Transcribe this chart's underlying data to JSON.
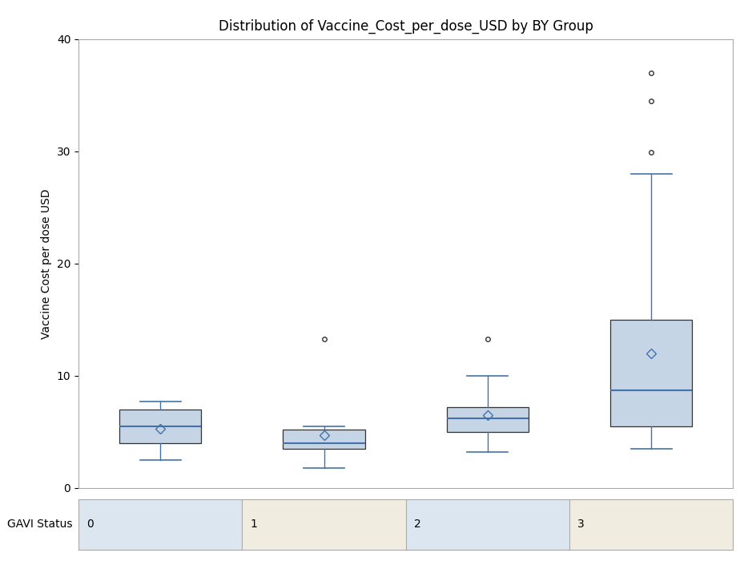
{
  "title": "Distribution of Vaccine_Cost_per_dose_USD by BY Group",
  "ylabel": "Vaccine Cost per dose USD",
  "xlabel_label": "GAVI Status",
  "groups": [
    "0",
    "1",
    "2",
    "3"
  ],
  "ylim": [
    0,
    40
  ],
  "yticks": [
    0,
    10,
    20,
    30,
    40
  ],
  "box_data": {
    "0": {
      "whislo": 2.5,
      "q1": 4.0,
      "med": 5.5,
      "q3": 7.0,
      "whishi": 7.7,
      "mean": 5.3,
      "fliers": []
    },
    "1": {
      "whislo": 1.8,
      "q1": 3.5,
      "med": 4.0,
      "q3": 5.2,
      "whishi": 5.5,
      "mean": 4.7,
      "fliers": [
        13.3
      ]
    },
    "2": {
      "whislo": 3.2,
      "q1": 5.0,
      "med": 6.2,
      "q3": 7.2,
      "whishi": 10.0,
      "mean": 6.5,
      "fliers": [
        13.3
      ]
    },
    "3": {
      "whislo": 3.5,
      "q1": 5.5,
      "med": 8.7,
      "q3": 15.0,
      "whishi": 28.0,
      "mean": 12.0,
      "fliers": [
        29.9,
        34.5,
        37.0
      ]
    }
  },
  "box_color": "#c5d5e5",
  "box_edge_color": "#333333",
  "median_color": "#4472a8",
  "whisker_color": "#4472a8",
  "cap_color": "#4472a8",
  "mean_marker_color": "#4472a8",
  "flier_color": "#333333",
  "background_color": "#ffffff",
  "plot_bg_color": "#ffffff",
  "title_fontsize": 12,
  "label_fontsize": 10,
  "tick_fontsize": 10,
  "box_width": 0.5,
  "footer_color_even": "#dce6f0",
  "footer_color_odd": "#f0ede0",
  "footer_border_color": "#aaaaaa",
  "spine_color": "#aaaaaa"
}
